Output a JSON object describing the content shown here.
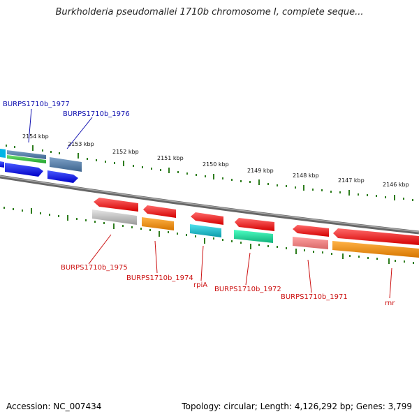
{
  "title": "Burkholderia pseudomallei 1710b chromosome I, complete seque...",
  "footer": {
    "accession": "Accession: NC_007434",
    "summary": "Topology: circular; Length: 4,126,292 bp; Genes: 3,799"
  },
  "colors": {
    "background": "#ffffff",
    "backbone": "#7a7a7a",
    "tick": "#2e7d1e",
    "label_top": "#1010b0",
    "label_bottom": "#cc1111"
  },
  "ticks": [
    "2154 kbp",
    "2153 kbp",
    "2152 kbp",
    "2151 kbp",
    "2150 kbp",
    "2149 kbp",
    "2148 kbp",
    "2147 kbp",
    "2146 kbp"
  ],
  "gene_labels_top": [
    "BURPS1710b_1977",
    "BURPS1710b_1976"
  ],
  "gene_labels_bottom": [
    "BURPS1710b_1975",
    "BURPS1710b_1974",
    "rpiA",
    "BURPS1710b_1972",
    "BURPS1710b_1971",
    "rnr"
  ]
}
